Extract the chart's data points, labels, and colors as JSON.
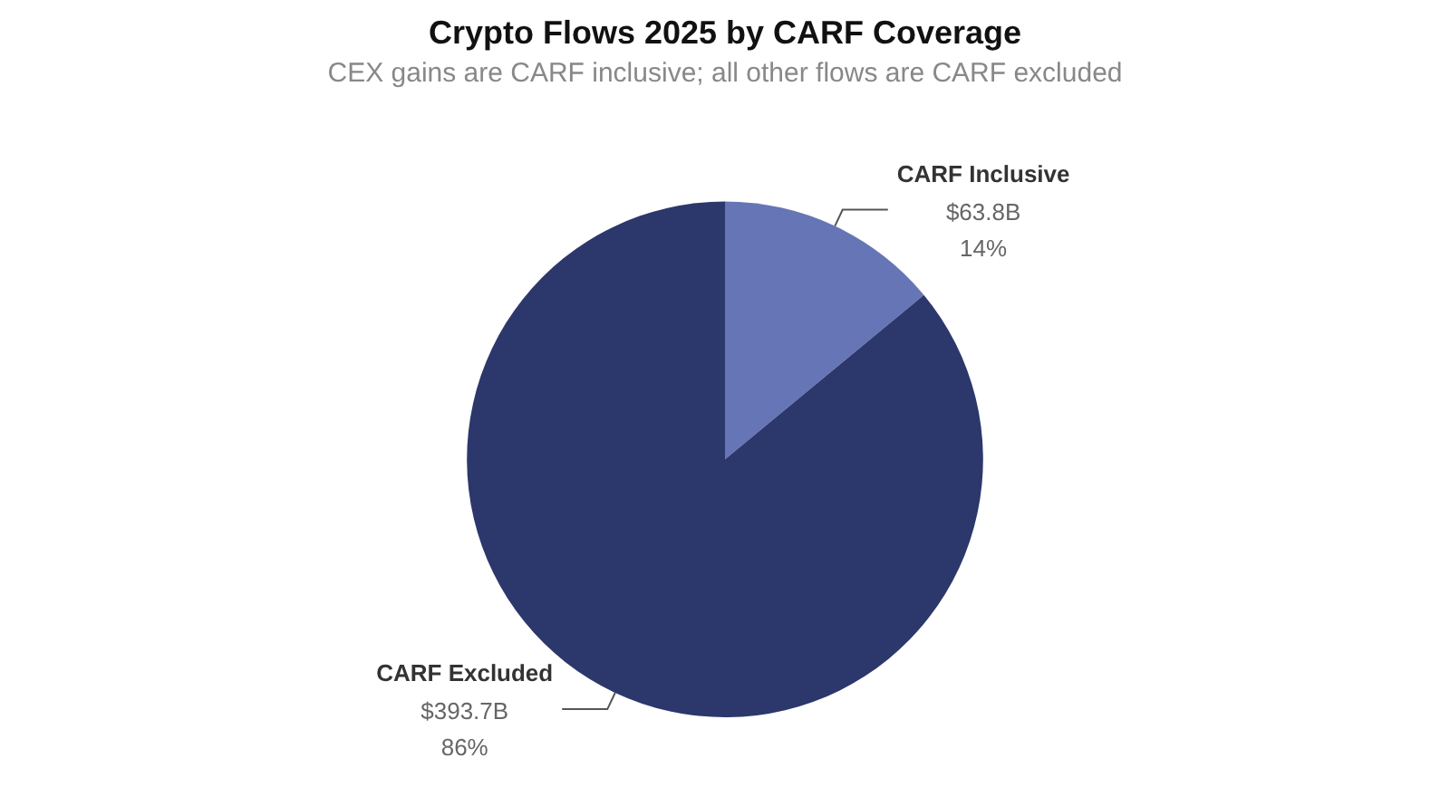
{
  "chart_data": {
    "type": "pie",
    "title": "Crypto Flows 2025 by CARF Coverage",
    "subtitle": "CEX gains are CARF inclusive; all other flows are CARF excluded",
    "categories": [
      "CARF Inclusive",
      "CARF Excluded"
    ],
    "values": [
      14,
      86
    ],
    "colors": [
      "#6675b5",
      "#2c376b"
    ],
    "value_labels": [
      "14%",
      "86%"
    ],
    "annotations": [
      {
        "text": "$63.8B",
        "x": "CARF Inclusive"
      },
      {
        "text": "$393.7B",
        "x": "CARF Excluded"
      }
    ],
    "legend": false
  }
}
